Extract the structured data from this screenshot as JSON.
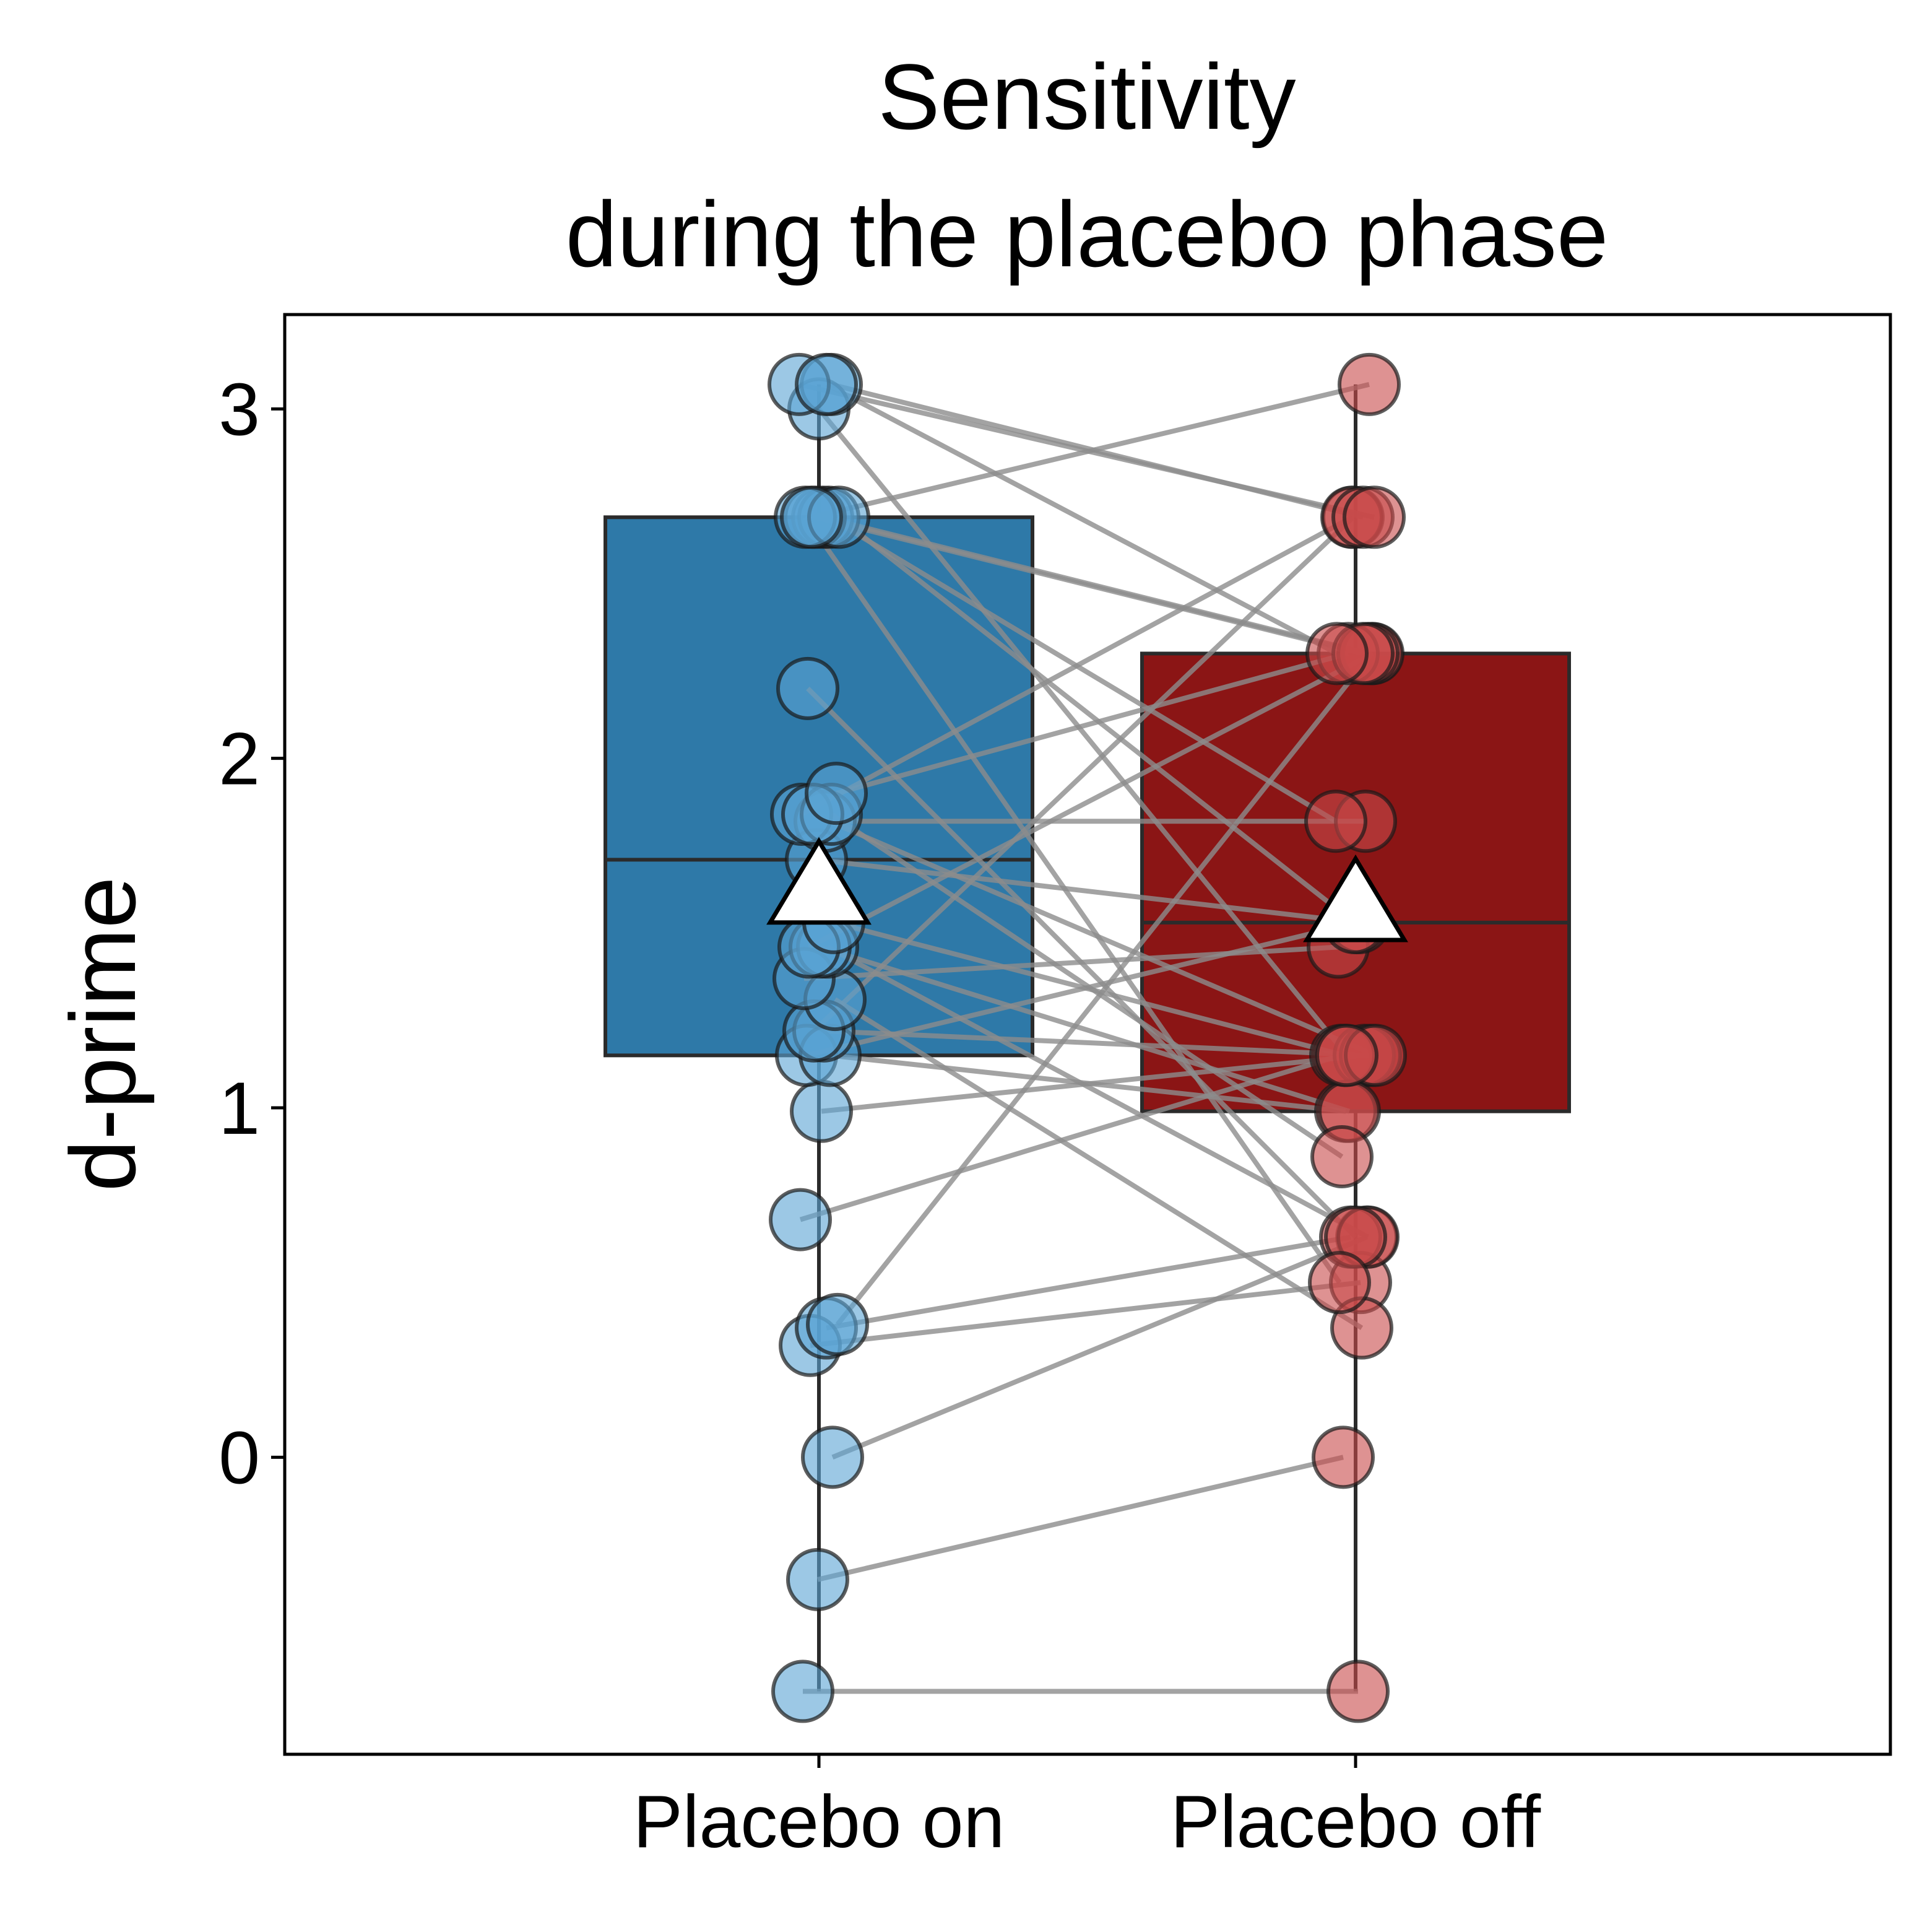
{
  "chart_data": {
    "type": "box",
    "title": [
      "Sensitivity",
      "during the placebo phase"
    ],
    "xlabel": "",
    "ylabel": "d-prime",
    "ylim": [
      -0.85,
      3.27
    ],
    "yticks": [
      0,
      1,
      2,
      3
    ],
    "grid": false,
    "categories": [
      "Placebo on",
      "Placebo off"
    ],
    "colors": {
      "on_box": "#2E79A8",
      "off_box": "#8B1515",
      "on_dot": "#5AA3D4",
      "off_dot": "#C84A4A",
      "line": "#8C8C8C"
    },
    "boxes": [
      {
        "category": "Placebo on",
        "whisker_low": -0.67,
        "q1": 1.15,
        "median": 1.71,
        "q3": 2.69,
        "whisker_high": 3.07,
        "mean": 1.63
      },
      {
        "category": "Placebo off",
        "whisker_low": -0.67,
        "q1": 0.99,
        "median": 1.53,
        "q3": 2.3,
        "whisker_high": 3.07,
        "mean": 1.58
      }
    ],
    "pairs": [
      [
        -0.67,
        -0.67
      ],
      [
        -0.35,
        0.0
      ],
      [
        0.0,
        0.63
      ],
      [
        0.32,
        0.5
      ],
      [
        0.37,
        0.63
      ],
      [
        0.38,
        2.3
      ],
      [
        0.68,
        1.15
      ],
      [
        0.99,
        1.15
      ],
      [
        1.15,
        1.53
      ],
      [
        1.15,
        0.99
      ],
      [
        1.22,
        1.15
      ],
      [
        1.22,
        2.69
      ],
      [
        1.31,
        0.37
      ],
      [
        1.37,
        1.46
      ],
      [
        1.46,
        0.63
      ],
      [
        1.46,
        0.99
      ],
      [
        1.46,
        2.3
      ],
      [
        1.53,
        1.15
      ],
      [
        1.71,
        1.53
      ],
      [
        1.82,
        1.82
      ],
      [
        1.84,
        2.69
      ],
      [
        1.84,
        0.86
      ],
      [
        1.84,
        1.15
      ],
      [
        1.9,
        2.3
      ],
      [
        2.2,
        0.63
      ],
      [
        2.69,
        2.3
      ],
      [
        2.69,
        1.82
      ],
      [
        2.69,
        2.3
      ],
      [
        2.69,
        0.5
      ],
      [
        2.69,
        1.53
      ],
      [
        2.69,
        3.07
      ],
      [
        3.0,
        1.15
      ],
      [
        3.07,
        2.69
      ],
      [
        3.07,
        2.69
      ],
      [
        3.07,
        2.3
      ]
    ]
  }
}
